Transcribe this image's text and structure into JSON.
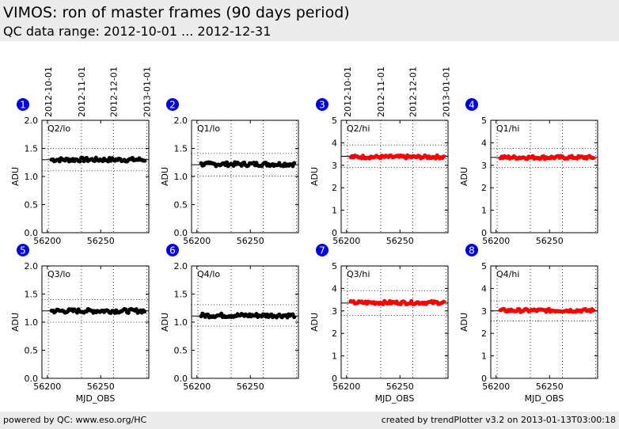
{
  "header": {
    "title": "VIMOS: ron of master frames (90 days period)",
    "subtitle": "QC data range: 2012-10-01 ... 2012-12-31"
  },
  "footer": {
    "left": "powered by QC: www.eso.org/HC",
    "right": "created by trendPlotter v3.2 on 2013-01-13T03:00:18"
  },
  "top_date_labels": [
    "2012-10-01",
    "2012-11-01",
    "2012-12-01",
    "2013-01-01"
  ],
  "top_date_mjd": [
    56201,
    56232,
    56262,
    56293
  ],
  "colors": {
    "lo": "#000000",
    "hi": "#ff0000",
    "badge": "#0000ee"
  },
  "chart_data": [
    {
      "id": "1",
      "type": "scatter",
      "title": "Q2/lo",
      "xlabel": "",
      "ylabel": "ADU",
      "xlim": [
        56195,
        56295
      ],
      "ylim": [
        0,
        2
      ],
      "xticks": [
        56200,
        56250
      ],
      "yticks": [
        "0.0",
        "0.5",
        "1.0",
        "1.5",
        "2.0"
      ],
      "ref_line": 1.3,
      "limits": [
        1.1,
        1.5
      ],
      "color": "lo",
      "base": 1.3,
      "series": [
        {
          "x_range": [
            56204,
            56291
          ],
          "mean": 1.3
        }
      ]
    },
    {
      "id": "2",
      "type": "scatter",
      "title": "Q1/lo",
      "xlabel": "",
      "ylabel": "ADU",
      "xlim": [
        56195,
        56295
      ],
      "ylim": [
        0,
        2
      ],
      "xticks": [
        56200,
        56250
      ],
      "yticks": [
        "0.0",
        "0.5",
        "1.0",
        "1.5",
        "2.0"
      ],
      "ref_line": 1.21,
      "limits": [
        1.01,
        1.41
      ],
      "color": "lo",
      "base": 1.22,
      "series": [
        {
          "x_range": [
            56204,
            56291
          ],
          "mean": 1.22
        }
      ]
    },
    {
      "id": "3",
      "type": "scatter",
      "title": "Q2/hi",
      "xlabel": "",
      "ylabel": "ADU",
      "xlim": [
        56195,
        56295
      ],
      "ylim": [
        0,
        5
      ],
      "xticks": [
        56200,
        56250
      ],
      "yticks": [
        "0",
        "1",
        "2",
        "3",
        "4",
        "5"
      ],
      "ref_line": 3.4,
      "limits": [
        2.9,
        3.9
      ],
      "color": "hi",
      "base": 3.37,
      "series": [
        {
          "x_range": [
            56204,
            56291
          ],
          "mean": 3.37
        }
      ]
    },
    {
      "id": "4",
      "type": "scatter",
      "title": "Q1/hi",
      "xlabel": "",
      "ylabel": "ADU",
      "xlim": [
        56195,
        56295
      ],
      "ylim": [
        0,
        5
      ],
      "xticks": [
        56200,
        56250
      ],
      "yticks": [
        "0",
        "1",
        "2",
        "3",
        "4",
        "5"
      ],
      "ref_line": 3.35,
      "limits": [
        2.9,
        3.75
      ],
      "color": "hi",
      "base": 3.35,
      "series": [
        {
          "x_range": [
            56204,
            56291
          ],
          "mean": 3.35
        }
      ]
    },
    {
      "id": "5",
      "type": "scatter",
      "title": "Q3/lo",
      "xlabel": "MJD_OBS",
      "ylabel": "ADU",
      "xlim": [
        56195,
        56295
      ],
      "ylim": [
        0,
        2
      ],
      "xticks": [
        56200,
        56250
      ],
      "yticks": [
        "0.0",
        "0.5",
        "1.0",
        "1.5",
        "2.0"
      ],
      "ref_line": 1.2,
      "limits": [
        1.0,
        1.4
      ],
      "color": "lo",
      "base": 1.2,
      "series": [
        {
          "x_range": [
            56204,
            56291
          ],
          "mean": 1.2
        }
      ]
    },
    {
      "id": "6",
      "type": "scatter",
      "title": "Q4/lo",
      "xlabel": "",
      "ylabel": "ADU",
      "xlim": [
        56195,
        56295
      ],
      "ylim": [
        0,
        2
      ],
      "xticks": [
        56200,
        56250
      ],
      "yticks": [
        "0.0",
        "0.5",
        "1.0",
        "1.5",
        "2.0"
      ],
      "ref_line": 1.11,
      "limits": [
        0.93,
        1.31
      ],
      "color": "lo",
      "base": 1.12,
      "series": [
        {
          "x_range": [
            56204,
            56291
          ],
          "mean": 1.12
        }
      ]
    },
    {
      "id": "7",
      "type": "scatter",
      "title": "Q3/hi",
      "xlabel": "MJD_OBS",
      "ylabel": "ADU",
      "xlim": [
        56195,
        56295
      ],
      "ylim": [
        0,
        5
      ],
      "xticks": [
        56200,
        56250
      ],
      "yticks": [
        "0",
        "1",
        "2",
        "3",
        "4",
        "5"
      ],
      "ref_line": 3.35,
      "limits": [
        2.8,
        3.9
      ],
      "color": "hi",
      "base": 3.37,
      "series": [
        {
          "x_range": [
            56204,
            56291
          ],
          "mean": 3.37
        }
      ]
    },
    {
      "id": "8",
      "type": "scatter",
      "title": "Q4/hi",
      "xlabel": "MJD_OBS",
      "ylabel": "ADU",
      "xlim": [
        56195,
        56295
      ],
      "ylim": [
        0,
        5
      ],
      "xticks": [
        56200,
        56250
      ],
      "yticks": [
        "0",
        "1",
        "2",
        "3",
        "4",
        "5"
      ],
      "ref_line": 3.0,
      "limits": [
        2.55,
        3.45
      ],
      "color": "hi",
      "base": 3.02,
      "series": [
        {
          "x_range": [
            56204,
            56291
          ],
          "mean": 3.02
        }
      ]
    }
  ]
}
